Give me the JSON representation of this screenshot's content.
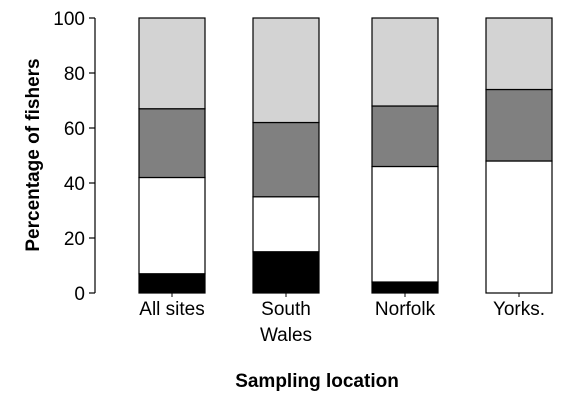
{
  "chart_data": {
    "type": "bar",
    "stacked": true,
    "normalized_percent": true,
    "xlabel": "Sampling location",
    "ylabel": "Percentage of fishers",
    "ylim": [
      0,
      100
    ],
    "yticks": [
      "0",
      "20",
      "40",
      "60",
      "80",
      "100"
    ],
    "categories": [
      [
        "All sites"
      ],
      [
        "South",
        "Wales"
      ],
      [
        "Norfolk"
      ],
      [
        "Yorks."
      ]
    ],
    "series": [
      {
        "color": "#000000",
        "values": [
          7,
          15,
          4,
          0
        ]
      },
      {
        "color": "#ffffff",
        "values": [
          35,
          20,
          42,
          48
        ]
      },
      {
        "color": "#808080",
        "values": [
          25,
          27,
          22,
          26
        ]
      },
      {
        "color": "#d3d3d3",
        "values": [
          33,
          38,
          32,
          26
        ]
      }
    ],
    "legend": "none",
    "grid": false
  }
}
